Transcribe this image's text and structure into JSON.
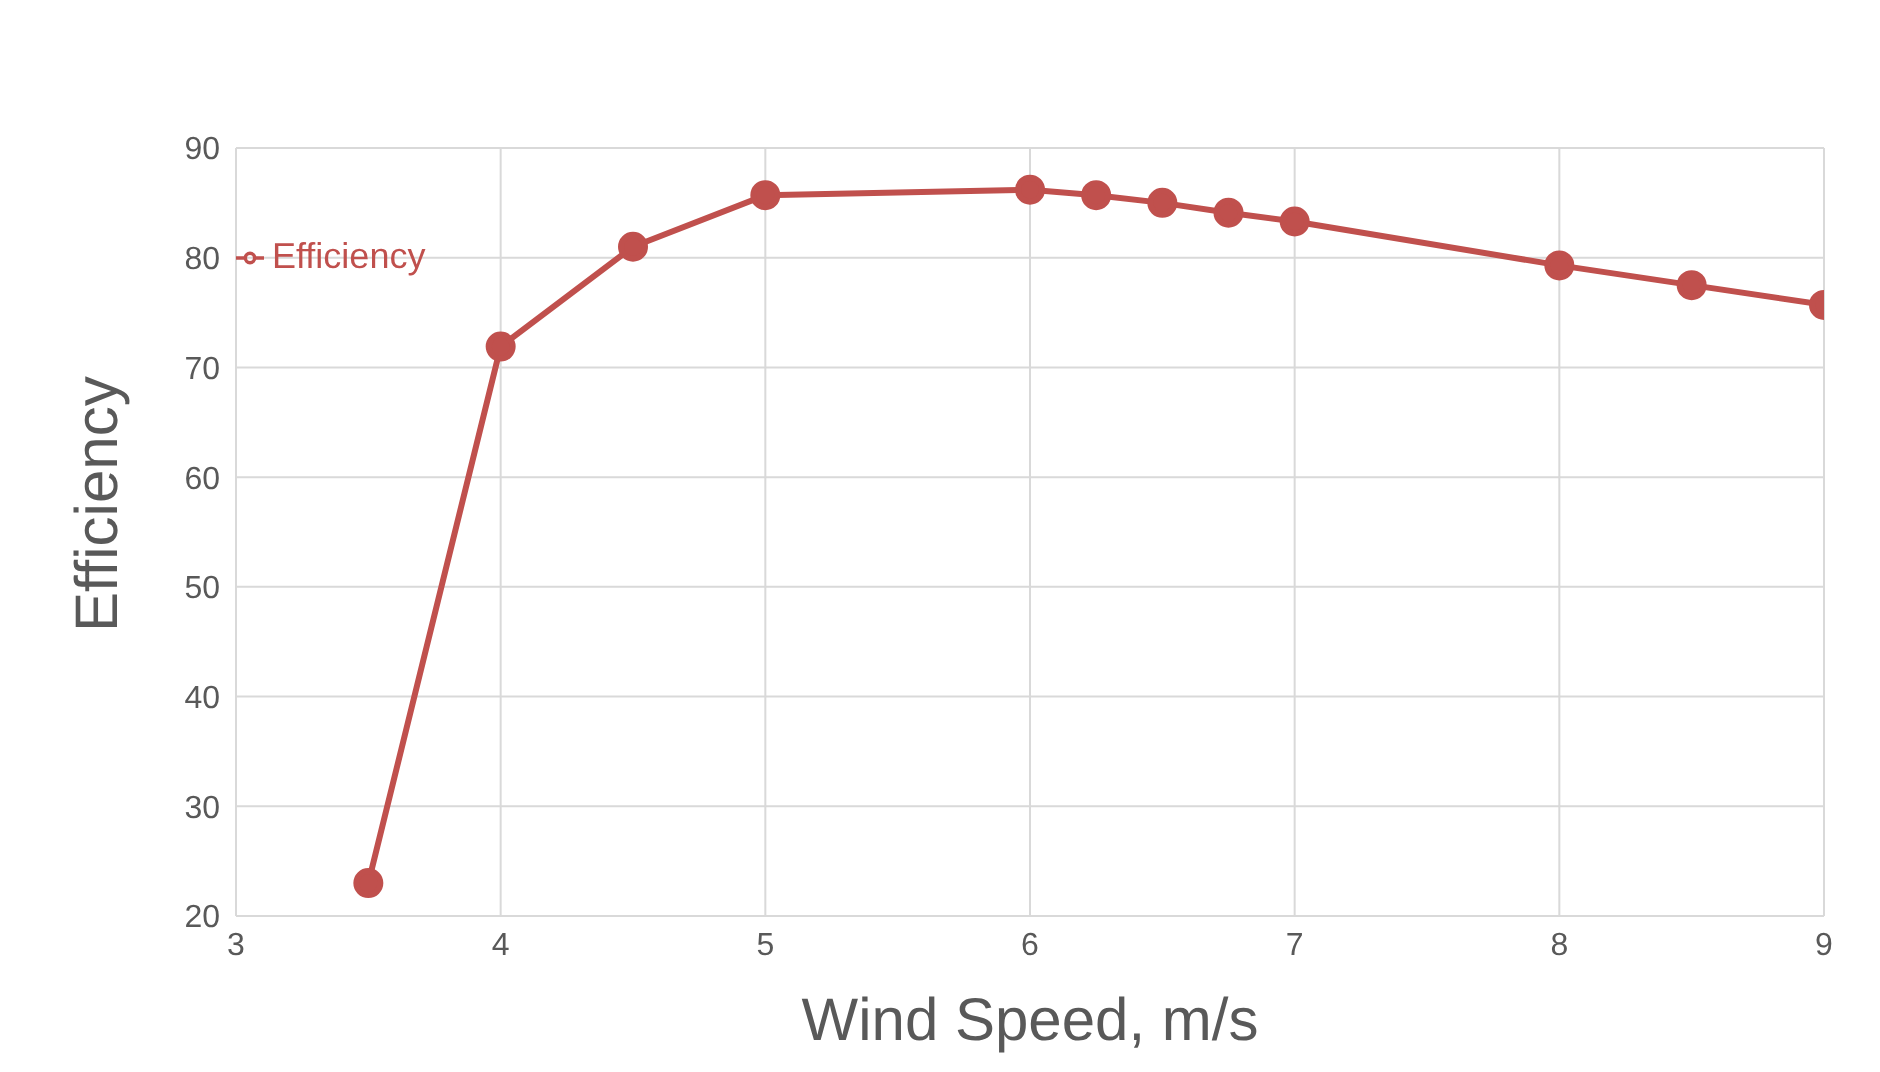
{
  "chart_data": {
    "type": "line",
    "xlabel": "Wind Speed, m/s",
    "ylabel": "Efficiency",
    "x": [
      3.5,
      4,
      4.5,
      5,
      6,
      6.25,
      6.5,
      6.75,
      7,
      8,
      8.5,
      9
    ],
    "series": [
      {
        "name": "Efficiency",
        "color": "#c0504d",
        "values": [
          23,
          71.9,
          81,
          85.7,
          86.2,
          85.7,
          85,
          84.1,
          83.3,
          79.3,
          77.5,
          75.7
        ]
      }
    ],
    "xlim": [
      3,
      9
    ],
    "xticks": [
      3,
      4,
      5,
      6,
      7,
      8,
      9
    ],
    "ylim": [
      20,
      90
    ],
    "yticks": [
      20,
      30,
      40,
      50,
      60,
      70,
      80,
      90
    ],
    "grid": true,
    "legend": "top left",
    "marker": "circle",
    "line_style": "solid"
  }
}
